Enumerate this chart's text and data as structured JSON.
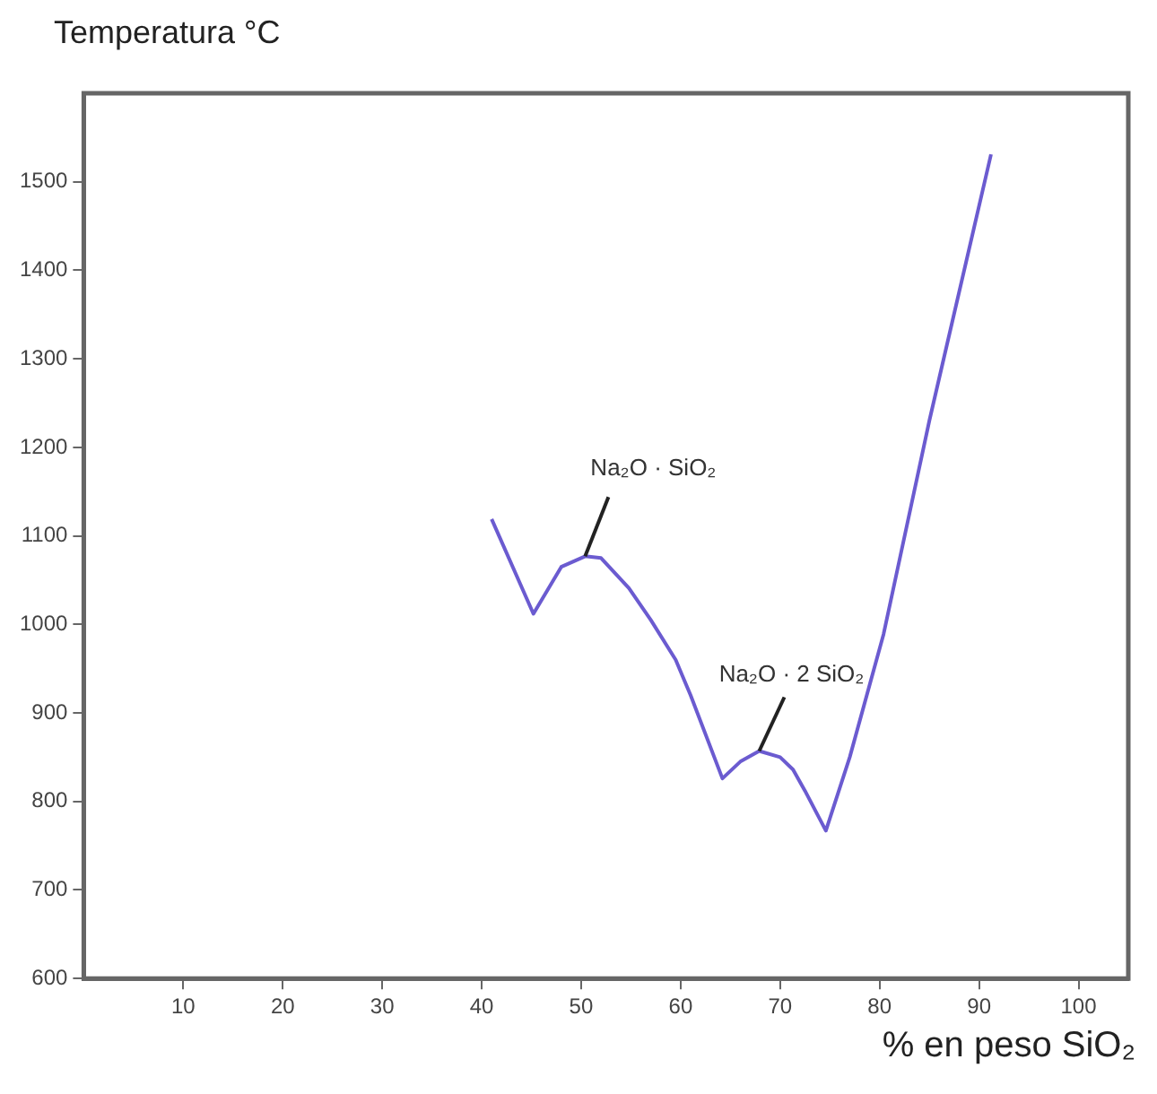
{
  "chart_data": {
    "type": "line",
    "ylabel": "Temperatura °C",
    "xlabel": "% en peso SiO₂",
    "series": [
      {
        "color": "#6b5bd0",
        "x": [
          41,
          45.2,
          48,
          50.4,
          52,
          54.8,
          57,
          59.5,
          61,
          64.2,
          66,
          67.9,
          70,
          71.3,
          72.5,
          74.6,
          77,
          80.4,
          85,
          91.2
        ],
        "values": [
          1119,
          1012,
          1065,
          1077,
          1075,
          1041,
          1005,
          960,
          920,
          826,
          845,
          857,
          850,
          836,
          812,
          767,
          850,
          989,
          1230,
          1531
        ]
      }
    ],
    "xlim": [
      0,
      105
    ],
    "xticks": [
      10,
      20,
      30,
      40,
      50,
      60,
      70,
      80,
      90,
      100
    ],
    "ylim": [
      600,
      1600
    ],
    "yticks": [
      600,
      700,
      800,
      900,
      1000,
      1100,
      1200,
      1300,
      1400,
      1500
    ],
    "marker": "none",
    "line_style": "solid",
    "legend": false,
    "annotations": [
      {
        "text": "Na₂O · SiO₂",
        "x": 50.4,
        "y": 1077
      },
      {
        "text": "Na₂O · 2 SiO₂",
        "x": 67.9,
        "y": 857
      }
    ]
  }
}
